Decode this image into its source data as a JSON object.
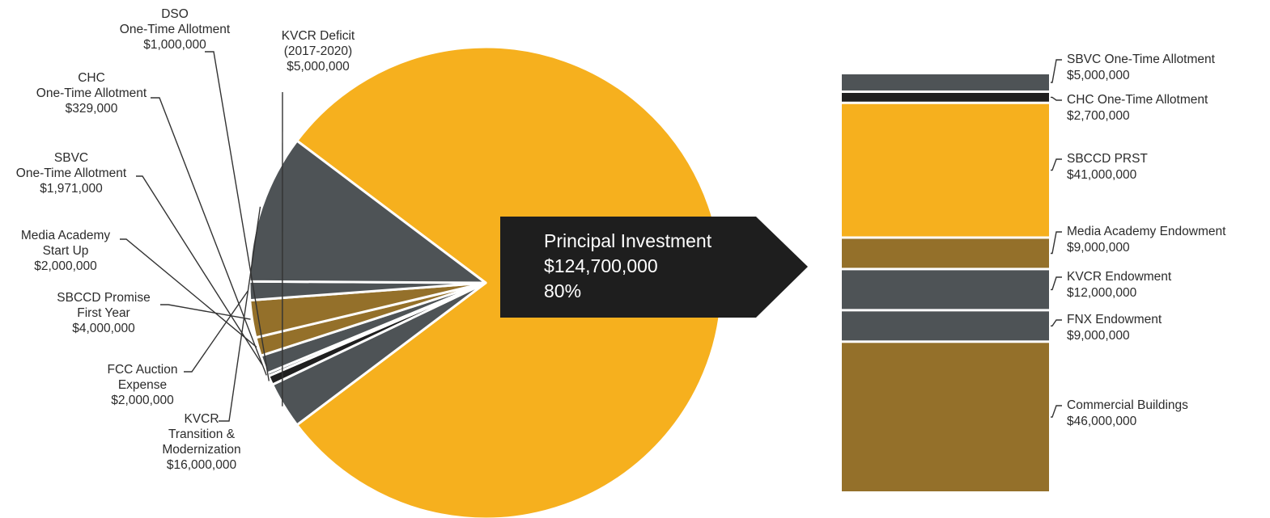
{
  "chart_data": [
    {
      "type": "pie",
      "slices": [
        {
          "name": "Principal Investment",
          "value": 124700000,
          "label": "",
          "color": "#F6B01E"
        },
        {
          "name": "KVCR Deficit (2017-2020)",
          "value": 5000000,
          "label_lines": [
            "KVCR Deficit",
            "(2017-2020)",
            "$5,000,000"
          ],
          "color": "#4E5356"
        },
        {
          "name": "DSO One-Time Allotment",
          "value": 1000000,
          "label_lines": [
            "DSO",
            "One-Time Allotment",
            "$1,000,000"
          ],
          "color": "#1F1F1F"
        },
        {
          "name": "CHC One-Time Allotment",
          "value": 329000,
          "label_lines": [
            "CHC",
            "One-Time Allotment",
            "$329,000"
          ],
          "color": "#4E5356"
        },
        {
          "name": "SBVC One-Time Allotment",
          "value": 1971000,
          "label_lines": [
            "SBVC",
            "One-Time Allotment",
            "$1,971,000"
          ],
          "color": "#4E5356"
        },
        {
          "name": "Media Academy Start Up",
          "value": 2000000,
          "label_lines": [
            "Media Academy",
            "Start Up",
            "$2,000,000"
          ],
          "color": "#94702A"
        },
        {
          "name": "SBCCD Promise First Year",
          "value": 4000000,
          "label_lines": [
            "SBCCD Promise",
            "First Year",
            "$4,000,000"
          ],
          "color": "#94702A"
        },
        {
          "name": "FCC Auction Expense",
          "value": 2000000,
          "label_lines": [
            "FCC Auction",
            "Expense",
            "$2,000,000"
          ],
          "color": "#4E5356"
        },
        {
          "name": "KVCR Transition & Modernization",
          "value": 16000000,
          "label_lines": [
            "KVCR",
            "Transition &",
            "Modernization",
            "$16,000,000"
          ],
          "color": "#4E5356"
        }
      ]
    },
    {
      "type": "bar",
      "stacked": true,
      "segments": [
        {
          "name": "SBVC One-Time Allotment",
          "value": 5000000,
          "label_lines": [
            "SBVC One-Time Allotment",
            "$5,000,000"
          ],
          "color": "#4E5356"
        },
        {
          "name": "CHC One-Time Allotment",
          "value": 2700000,
          "label_lines": [
            "CHC One-Time Allotment",
            "$2,700,000"
          ],
          "color": "#1F1F1F"
        },
        {
          "name": "SBCCD PRST",
          "value": 41000000,
          "label_lines": [
            "SBCCD PRST",
            "$41,000,000"
          ],
          "color": "#F6B01E"
        },
        {
          "name": "Media Academy Endowment",
          "value": 9000000,
          "label_lines": [
            "Media Academy Endowment",
            "$9,000,000"
          ],
          "color": "#94702A"
        },
        {
          "name": "KVCR Endowment",
          "value": 12000000,
          "label_lines": [
            "KVCR Endowment",
            "$12,000,000"
          ],
          "color": "#4E5356"
        },
        {
          "name": "FNX Endowment",
          "value": 9000000,
          "label_lines": [
            "FNX Endowment",
            "$9,000,000"
          ],
          "color": "#4E5356"
        },
        {
          "name": "Commercial Buildings",
          "value": 46000000,
          "label_lines": [
            "Commercial Buildings",
            "$46,000,000"
          ],
          "color": "#94702A"
        }
      ]
    }
  ],
  "callout": {
    "lines": [
      "Principal Investment",
      "$124,700,000",
      "80%"
    ]
  }
}
